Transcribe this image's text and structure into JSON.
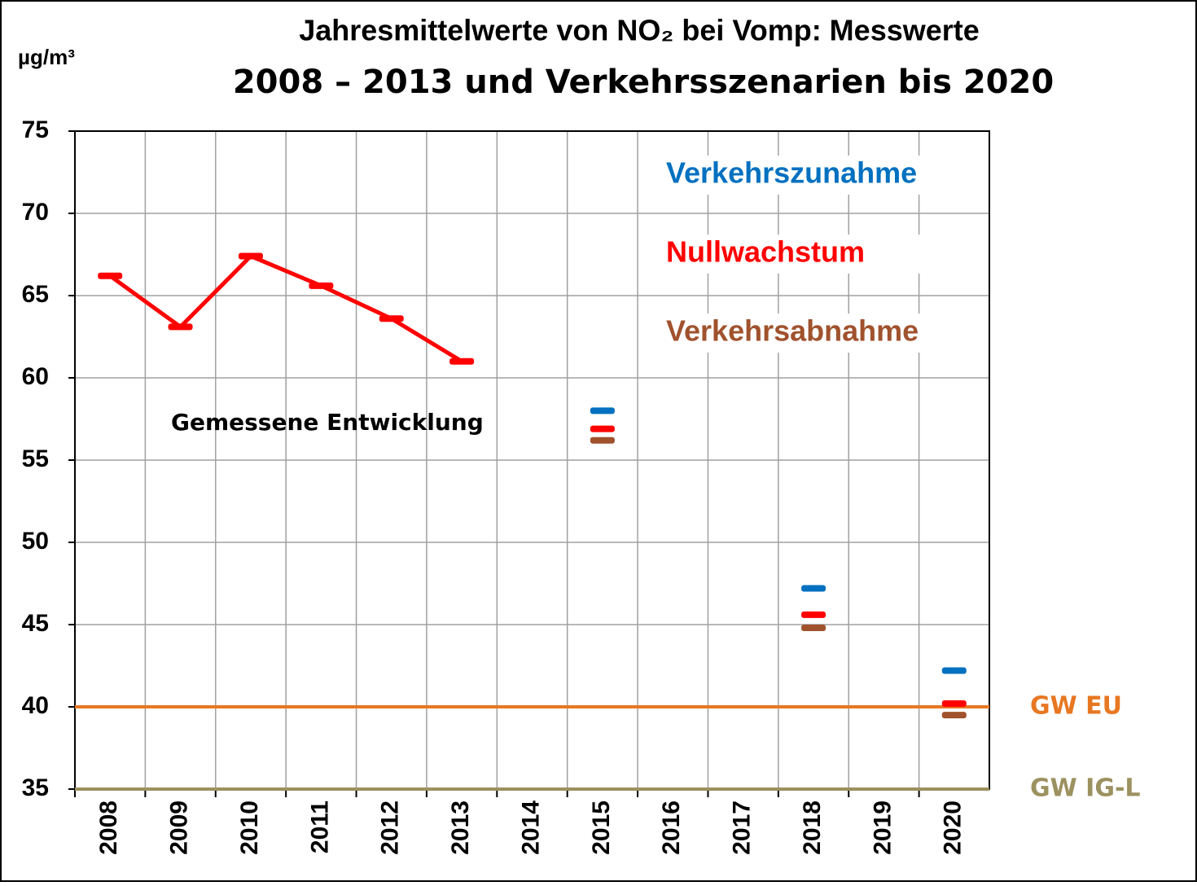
{
  "chart_data": {
    "type": "line",
    "title": [
      "Jahresmittelwerte von NO₂ bei Vomp: Messwerte",
      "2008 – 2013 und Verkehrsszenarien bis 2020"
    ],
    "y_label": "µg/m³",
    "categories": [
      "2008",
      "2009",
      "2010",
      "2011",
      "2012",
      "2013",
      "2014",
      "2015",
      "2016",
      "2017",
      "2018",
      "2019",
      "2020"
    ],
    "series": [
      {
        "name": "Gemessene Entwicklung",
        "color": "#ff0000",
        "style": "line",
        "values": [
          66.2,
          63.1,
          67.4,
          65.6,
          63.6,
          61.0,
          null,
          null,
          null,
          null,
          null,
          null,
          null
        ]
      },
      {
        "name": "Verkehrszunahme",
        "color": "#0070c0",
        "style": "marker",
        "values": [
          null,
          null,
          null,
          null,
          null,
          null,
          null,
          58.0,
          null,
          null,
          47.2,
          null,
          42.2
        ]
      },
      {
        "name": "Nullwachstum",
        "color": "#ff0000",
        "style": "marker",
        "values": [
          null,
          null,
          null,
          null,
          null,
          null,
          null,
          56.9,
          null,
          null,
          45.6,
          null,
          40.2
        ]
      },
      {
        "name": "Verkehrsabnahme",
        "color": "#a0522d",
        "style": "marker",
        "values": [
          null,
          null,
          null,
          null,
          null,
          null,
          null,
          56.2,
          null,
          null,
          44.8,
          null,
          39.5
        ]
      }
    ],
    "reference_lines": [
      {
        "label": "GW EU",
        "value": 40,
        "color": "#e87722"
      },
      {
        "label": "GW IG-L",
        "value": 35,
        "color": "#9c9160"
      }
    ],
    "ylim": [
      35,
      75
    ],
    "yticks": [
      35,
      40,
      45,
      50,
      55,
      60,
      65,
      70,
      75
    ],
    "grid": true
  }
}
